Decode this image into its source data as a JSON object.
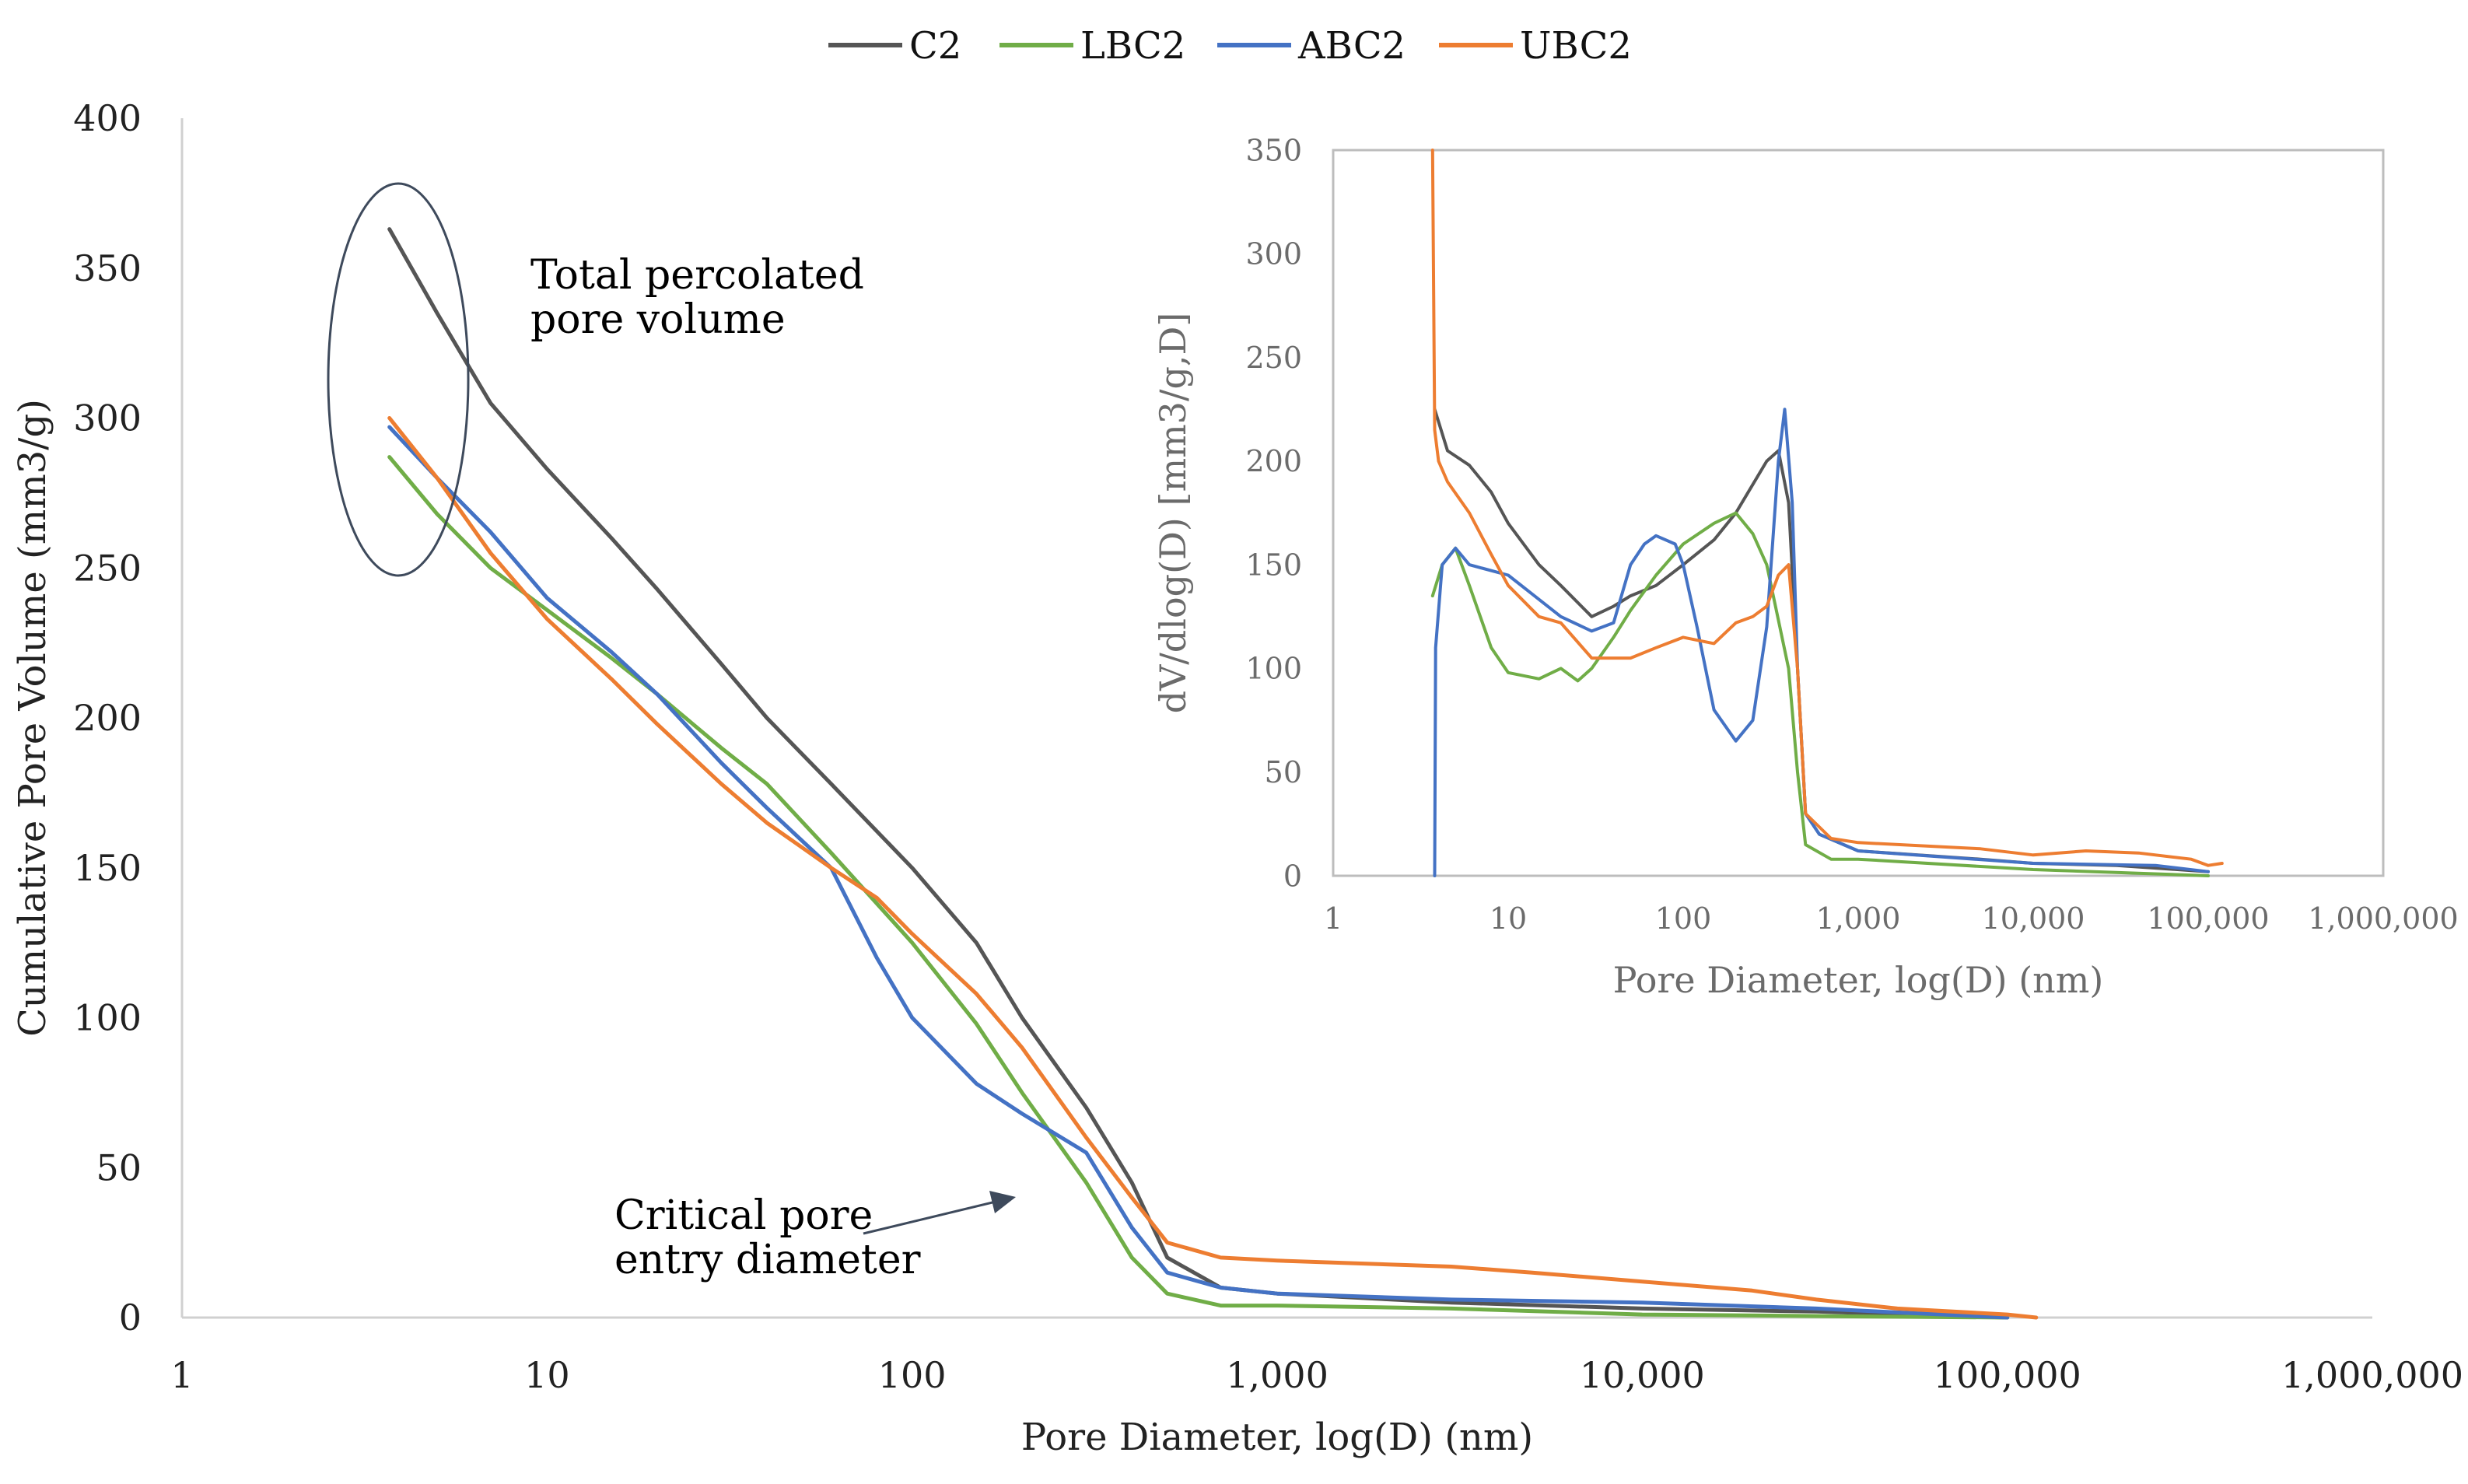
{
  "chart_data": [
    {
      "id": "main",
      "type": "line",
      "title": "",
      "xlabel": "Pore Diameter, log(D) (nm)",
      "ylabel": "Cumulative Pore Volume (mm3/g)",
      "xscale": "log",
      "xlim": [
        1,
        1000000
      ],
      "ylim": [
        0,
        400
      ],
      "yticks": [
        0,
        50,
        100,
        150,
        200,
        250,
        300,
        350,
        400
      ],
      "xtick_values": [
        1,
        10,
        100,
        1000,
        10000,
        100000,
        1000000
      ],
      "xtick_labels": [
        "1",
        "10",
        "100",
        "1,000",
        "10,000",
        "100,000",
        "1,000,000"
      ],
      "grid": false,
      "legend": {
        "position": "top-center",
        "entries": [
          "C2",
          "LBC2",
          "ABC2",
          "UBC2"
        ]
      },
      "annotations": [
        {
          "id": "total",
          "lines": [
            "Total percolated",
            "pore volume"
          ]
        },
        {
          "id": "critical",
          "lines": [
            "Critical pore",
            "entry diameter"
          ]
        }
      ],
      "series": [
        {
          "name": "C2",
          "color": "#555555",
          "points": [
            [
              3.7,
              363
            ],
            [
              5,
              335
            ],
            [
              7,
              305
            ],
            [
              10,
              283
            ],
            [
              15,
              260
            ],
            [
              20,
              243
            ],
            [
              30,
              218
            ],
            [
              40,
              200
            ],
            [
              60,
              178
            ],
            [
              100,
              150
            ],
            [
              150,
              125
            ],
            [
              200,
              100
            ],
            [
              300,
              70
            ],
            [
              400,
              45
            ],
            [
              500,
              20
            ],
            [
              700,
              10
            ],
            [
              1000,
              8
            ],
            [
              3000,
              5
            ],
            [
              10000,
              3
            ],
            [
              30000,
              2
            ],
            [
              100000,
              0
            ]
          ]
        },
        {
          "name": "LBC2",
          "color": "#70AD47",
          "points": [
            [
              3.7,
              287
            ],
            [
              5,
              268
            ],
            [
              7,
              250
            ],
            [
              10,
              236
            ],
            [
              15,
              220
            ],
            [
              20,
              208
            ],
            [
              30,
              190
            ],
            [
              40,
              178
            ],
            [
              60,
              155
            ],
            [
              100,
              125
            ],
            [
              150,
              98
            ],
            [
              200,
              75
            ],
            [
              300,
              45
            ],
            [
              400,
              20
            ],
            [
              500,
              8
            ],
            [
              700,
              4
            ],
            [
              1000,
              4
            ],
            [
              3000,
              3
            ],
            [
              10000,
              1
            ],
            [
              30000,
              0.5
            ],
            [
              100000,
              0
            ]
          ]
        },
        {
          "name": "ABC2",
          "color": "#4472C4",
          "points": [
            [
              3.7,
              297
            ],
            [
              5,
              280
            ],
            [
              7,
              262
            ],
            [
              10,
              240
            ],
            [
              15,
              222
            ],
            [
              20,
              208
            ],
            [
              30,
              185
            ],
            [
              40,
              170
            ],
            [
              60,
              150
            ],
            [
              80,
              120
            ],
            [
              100,
              100
            ],
            [
              150,
              78
            ],
            [
              200,
              68
            ],
            [
              300,
              55
            ],
            [
              400,
              30
            ],
            [
              500,
              15
            ],
            [
              700,
              10
            ],
            [
              1000,
              8
            ],
            [
              3000,
              6
            ],
            [
              10000,
              5
            ],
            [
              30000,
              3
            ],
            [
              100000,
              0
            ]
          ]
        },
        {
          "name": "UBC2",
          "color": "#ED7D31",
          "points": [
            [
              3.7,
              300
            ],
            [
              5,
              280
            ],
            [
              7,
              255
            ],
            [
              10,
              233
            ],
            [
              15,
              213
            ],
            [
              20,
              198
            ],
            [
              30,
              178
            ],
            [
              40,
              165
            ],
            [
              60,
              150
            ],
            [
              80,
              140
            ],
            [
              100,
              128
            ],
            [
              150,
              108
            ],
            [
              200,
              90
            ],
            [
              300,
              60
            ],
            [
              400,
              40
            ],
            [
              500,
              25
            ],
            [
              700,
              20
            ],
            [
              1000,
              19
            ],
            [
              3000,
              17
            ],
            [
              5000,
              15
            ],
            [
              10000,
              12
            ],
            [
              20000,
              9
            ],
            [
              30000,
              6
            ],
            [
              50000,
              3
            ],
            [
              100000,
              1
            ],
            [
              120000,
              0
            ]
          ]
        }
      ]
    },
    {
      "id": "inset",
      "type": "line",
      "title": "",
      "xlabel": "Pore Diameter, log(D) (nm)",
      "ylabel": "dV/dlog(D) [mm3/g,D]",
      "xscale": "log",
      "xlim": [
        1,
        1000000
      ],
      "ylim": [
        0,
        350
      ],
      "yticks": [
        0,
        50,
        100,
        150,
        200,
        250,
        300,
        350
      ],
      "xtick_values": [
        1,
        10,
        100,
        1000,
        10000,
        100000,
        1000000
      ],
      "xtick_labels": [
        "1",
        "10",
        "100",
        "1,000",
        "10,000",
        "100,000",
        "1,000,000"
      ],
      "grid": false,
      "series": [
        {
          "name": "C2",
          "color": "#555555",
          "points": [
            [
              3.8,
              225
            ],
            [
              4.5,
              205
            ],
            [
              6,
              198
            ],
            [
              8,
              185
            ],
            [
              10,
              170
            ],
            [
              15,
              150
            ],
            [
              20,
              140
            ],
            [
              30,
              125
            ],
            [
              40,
              130
            ],
            [
              50,
              135
            ],
            [
              70,
              140
            ],
            [
              100,
              150
            ],
            [
              150,
              162
            ],
            [
              200,
              175
            ],
            [
              300,
              200
            ],
            [
              350,
              205
            ],
            [
              400,
              180
            ],
            [
              450,
              100
            ],
            [
              500,
              30
            ],
            [
              600,
              20
            ],
            [
              1000,
              12
            ],
            [
              5000,
              8
            ],
            [
              10000,
              6
            ],
            [
              30000,
              5
            ],
            [
              100000,
              2
            ]
          ]
        },
        {
          "name": "LBC2",
          "color": "#70AD47",
          "points": [
            [
              3.7,
              135
            ],
            [
              4.2,
              150
            ],
            [
              5,
              158
            ],
            [
              6,
              140
            ],
            [
              8,
              110
            ],
            [
              10,
              98
            ],
            [
              15,
              95
            ],
            [
              20,
              100
            ],
            [
              25,
              94
            ],
            [
              30,
              100
            ],
            [
              40,
              115
            ],
            [
              50,
              128
            ],
            [
              70,
              145
            ],
            [
              100,
              160
            ],
            [
              150,
              170
            ],
            [
              200,
              175
            ],
            [
              250,
              165
            ],
            [
              300,
              150
            ],
            [
              400,
              100
            ],
            [
              450,
              50
            ],
            [
              500,
              15
            ],
            [
              700,
              8
            ],
            [
              1000,
              8
            ],
            [
              10000,
              3
            ],
            [
              100000,
              0
            ]
          ]
        },
        {
          "name": "ABC2",
          "color": "#4472C4",
          "points": [
            [
              3.8,
              0
            ],
            [
              3.85,
              110
            ],
            [
              4.2,
              150
            ],
            [
              5,
              158
            ],
            [
              6,
              150
            ],
            [
              10,
              145
            ],
            [
              20,
              125
            ],
            [
              30,
              118
            ],
            [
              40,
              122
            ],
            [
              50,
              150
            ],
            [
              60,
              160
            ],
            [
              70,
              164
            ],
            [
              90,
              160
            ],
            [
              100,
              150
            ],
            [
              120,
              120
            ],
            [
              150,
              80
            ],
            [
              200,
              65
            ],
            [
              250,
              75
            ],
            [
              300,
              120
            ],
            [
              350,
              200
            ],
            [
              380,
              225
            ],
            [
              420,
              180
            ],
            [
              450,
              100
            ],
            [
              500,
              30
            ],
            [
              600,
              20
            ],
            [
              1000,
              12
            ],
            [
              10000,
              6
            ],
            [
              50000,
              5
            ],
            [
              100000,
              2
            ]
          ]
        },
        {
          "name": "UBC2",
          "color": "#ED7D31",
          "points": [
            [
              3.7,
              350
            ],
            [
              3.75,
              280
            ],
            [
              3.8,
              215
            ],
            [
              4,
              200
            ],
            [
              4.5,
              190
            ],
            [
              6,
              175
            ],
            [
              8,
              155
            ],
            [
              10,
              140
            ],
            [
              15,
              125
            ],
            [
              20,
              122
            ],
            [
              30,
              105
            ],
            [
              50,
              105
            ],
            [
              70,
              110
            ],
            [
              100,
              115
            ],
            [
              150,
              112
            ],
            [
              200,
              122
            ],
            [
              250,
              125
            ],
            [
              300,
              130
            ],
            [
              350,
              145
            ],
            [
              400,
              150
            ],
            [
              450,
              100
            ],
            [
              500,
              30
            ],
            [
              700,
              18
            ],
            [
              1000,
              16
            ],
            [
              5000,
              13
            ],
            [
              10000,
              10
            ],
            [
              20000,
              12
            ],
            [
              40000,
              11
            ],
            [
              80000,
              8
            ],
            [
              100000,
              5
            ],
            [
              120000,
              6
            ]
          ]
        }
      ]
    }
  ]
}
